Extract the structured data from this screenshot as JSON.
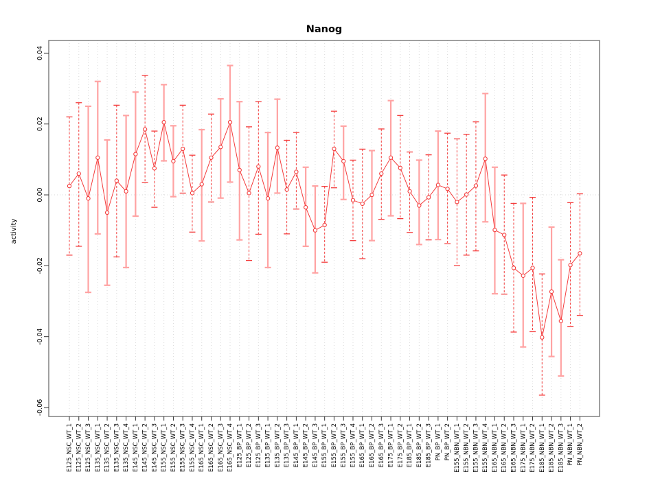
{
  "figure": {
    "title": "Nanog",
    "ylabel": "activity"
  },
  "chart_data": {
    "type": "line",
    "subtype": "means-with-error-bars",
    "title": "Nanog",
    "xlabel": "",
    "ylabel": "activity",
    "ylim": [
      -0.06,
      0.04
    ],
    "y_ticks": [
      0.04,
      0.02,
      0.0,
      -0.02,
      -0.04,
      -0.06
    ],
    "y_tick_labels": [
      "0.04",
      "0.02",
      "0.00",
      "-0.02",
      "-0.04",
      "-0.06"
    ],
    "grid": "vertical dotted gridline at every category; dotted horizontal line at y=0",
    "legend_position": "none",
    "point_marker": "open-circle",
    "colors": {
      "series_line": "#f43b3b",
      "error_bar_dark": "#f43b3b",
      "error_bar_light": "#ffa3a3",
      "gridline": "#d9d9d9",
      "plot_border": "#808080",
      "tick": "#333333",
      "background": "#ffffff"
    },
    "categories": [
      "E125_NSC_WT_1",
      "E125_NSC_WT_2",
      "E125_NSC_WT_3",
      "E135_NSC_WT_1",
      "E135_NSC_WT_2",
      "E135_NSC_WT_3",
      "E135_NSC_WT_4",
      "E145_NSC_WT_1",
      "E145_NSC_WT_2",
      "E145_NSC_WT_3",
      "E155_NSC_WT_1",
      "E155_NSC_WT_2",
      "E155_NSC_WT_3",
      "E155_NSC_WT_4",
      "E165_NSC_WT_1",
      "E165_NSC_WT_2",
      "E165_NSC_WT_3",
      "E165_NSC_WT_4",
      "E125_BP_WT_1",
      "E125_BP_WT_2",
      "E125_BP_WT_3",
      "E135_BP_WT_1",
      "E135_BP_WT_2",
      "E135_BP_WT_3",
      "E145_BP_WT_1",
      "E145_BP_WT_2",
      "E145_BP_WT_3",
      "E155_BP_WT_1",
      "E155_BP_WT_2",
      "E155_BP_WT_3",
      "E155_BP_WT_4",
      "E165_BP_WT_1",
      "E165_BP_WT_2",
      "E165_BP_WT_3",
      "E175_BP_WT_1",
      "E175_BP_WT_2",
      "E185_BP_WT_1",
      "E185_BP_WT_2",
      "E185_BP_WT_3",
      "PN_BP_WT_1",
      "PN_BP_WT_2",
      "E155_NBN_WT_1",
      "E155_NBN_WT_2",
      "E155_NBN_WT_3",
      "E155_NBN_WT_4",
      "E165_NBN_WT_1",
      "E165_NBN_WT_2",
      "E165_NBN_WT_3",
      "E175_NBN_WT_1",
      "E175_NBN_WT_2",
      "E185_NBN_WT_1",
      "E185_NBN_WT_2",
      "E185_NBN_WT_3",
      "PN_NBN_WT_1",
      "PN_NBN_WT_2"
    ],
    "series": [
      {
        "name": "activity",
        "values": [
          0.0025,
          0.006,
          -0.001,
          0.0105,
          -0.005,
          0.004,
          0.001,
          0.0115,
          0.0185,
          0.0075,
          0.0205,
          0.0095,
          0.013,
          0.0005,
          0.003,
          0.0105,
          0.0135,
          0.0205,
          0.007,
          0.0005,
          0.008,
          -0.001,
          0.0133,
          0.0015,
          0.0065,
          -0.0035,
          -0.01,
          -0.0085,
          0.013,
          0.0095,
          -0.0015,
          -0.0025,
          0.0,
          0.006,
          0.0105,
          0.0076,
          0.001,
          -0.003,
          -0.0007,
          0.0028,
          0.0017,
          -0.002,
          0.0001,
          0.0026,
          0.0102,
          -0.0099,
          -0.0113,
          -0.0206,
          -0.0228,
          -0.0206,
          -0.0402,
          -0.0273,
          -0.0356,
          -0.0198,
          -0.0165
        ]
      }
    ],
    "error_low": [
      -0.017,
      -0.0145,
      -0.0275,
      -0.011,
      -0.0255,
      -0.0175,
      -0.0205,
      -0.006,
      0.0035,
      -0.0035,
      0.0096,
      -0.0005,
      0.0005,
      -0.0105,
      -0.013,
      -0.002,
      -0.0009,
      0.0036,
      -0.0127,
      -0.0185,
      -0.0111,
      -0.0205,
      0.0005,
      -0.011,
      -0.004,
      -0.0145,
      -0.022,
      -0.019,
      0.002,
      -0.0013,
      -0.0129,
      -0.018,
      -0.0129,
      -0.0069,
      -0.0059,
      -0.0067,
      -0.0106,
      -0.014,
      -0.0127,
      -0.0126,
      -0.0138,
      -0.02,
      -0.017,
      -0.0158,
      -0.0076,
      -0.0279,
      -0.028,
      -0.0387,
      -0.0429,
      -0.0386,
      -0.0565,
      -0.0456,
      -0.0511,
      -0.0371,
      -0.034
    ],
    "error_high": [
      0.022,
      0.026,
      0.025,
      0.032,
      0.0155,
      0.0253,
      0.0224,
      0.029,
      0.0337,
      0.018,
      0.0311,
      0.0195,
      0.0253,
      0.0112,
      0.0184,
      0.0228,
      0.0271,
      0.0365,
      0.0263,
      0.0192,
      0.0263,
      0.0176,
      0.027,
      0.0154,
      0.0176,
      0.0078,
      0.0025,
      0.0024,
      0.0236,
      0.0194,
      0.0098,
      0.0129,
      0.0125,
      0.0186,
      0.0266,
      0.0224,
      0.0121,
      0.0098,
      0.0113,
      0.018,
      0.0174,
      0.0158,
      0.0171,
      0.0206,
      0.0286,
      0.0078,
      0.0056,
      -0.0024,
      -0.0024,
      -0.0007,
      -0.0223,
      -0.0091,
      -0.0183,
      -0.0022,
      0.0003
    ],
    "error_bar_shade": [
      "dark",
      "dark",
      "light",
      "light",
      "light",
      "dark",
      "light",
      "light",
      "dark",
      "dark",
      "light",
      "light",
      "dark",
      "dark",
      "light",
      "dark",
      "light",
      "light",
      "light",
      "dark",
      "dark",
      "light",
      "light",
      "dark",
      "dark",
      "light",
      "light",
      "dark",
      "dark",
      "light",
      "dark",
      "dark",
      "light",
      "dark",
      "light",
      "dark",
      "dark",
      "light",
      "dark",
      "light",
      "dark",
      "dark",
      "dark",
      "dark",
      "light",
      "light",
      "dark",
      "dark",
      "light",
      "dark",
      "dark",
      "light",
      "light",
      "dark",
      "dark"
    ]
  }
}
